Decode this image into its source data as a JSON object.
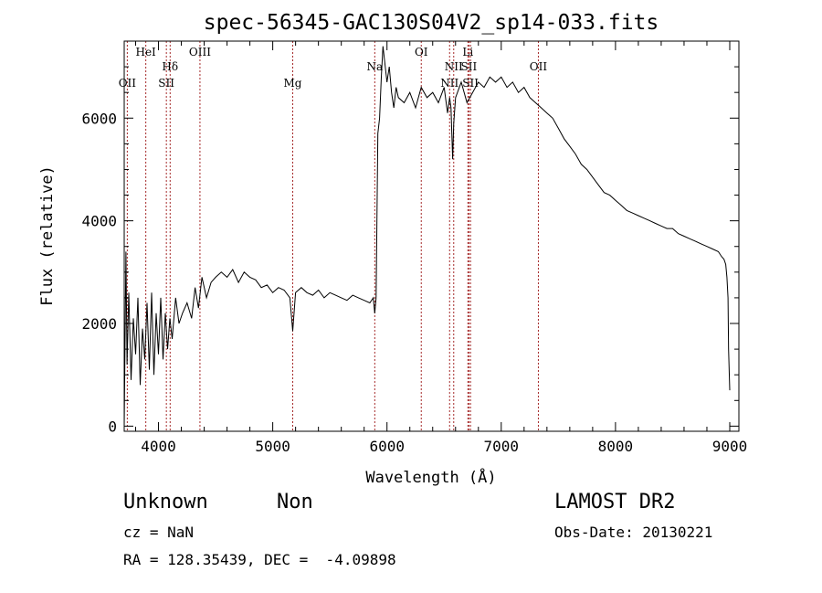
{
  "chart_data": {
    "type": "line",
    "title": "spec-56345-GAC130S04V2_sp14-033.fits",
    "xlabel": "Wavelength (Å)",
    "ylabel": "Flux (relative)",
    "xlim": [
      3700,
      9080
    ],
    "ylim": [
      -100,
      7500
    ],
    "x_ticks": [
      4000,
      5000,
      6000,
      7000,
      8000,
      9000
    ],
    "y_ticks": [
      0,
      2000,
      4000,
      6000
    ],
    "grid": false,
    "line_color": "#000000",
    "marker_color": "#a52a2a",
    "spectral_lines": [
      {
        "label": "OII",
        "wavelength": 3727,
        "row": 3
      },
      {
        "label": "HeI",
        "wavelength": 3889,
        "row": 1
      },
      {
        "label": "SII",
        "wavelength": 4069,
        "row": 3
      },
      {
        "label": "Hδ",
        "wavelength": 4102,
        "row": 2
      },
      {
        "label": "OIII",
        "wavelength": 4363,
        "row": 1
      },
      {
        "label": "Mg",
        "wavelength": 5175,
        "row": 3
      },
      {
        "label": "Na",
        "wavelength": 5893,
        "row": 2
      },
      {
        "label": "OI",
        "wavelength": 6300,
        "row": 1
      },
      {
        "label": "NII",
        "wavelength": 6548,
        "row": 3
      },
      {
        "label": "NII",
        "wavelength": 6584,
        "row": 2
      },
      {
        "label": "Li",
        "wavelength": 6708,
        "row": 1
      },
      {
        "label": "SII",
        "wavelength": 6717,
        "row": 2
      },
      {
        "label": "SII",
        "wavelength": 6731,
        "row": 3
      },
      {
        "label": "OII",
        "wavelength": 7325,
        "row": 2
      }
    ],
    "series": [
      {
        "x": [
          3700,
          3715,
          3725,
          3740,
          3760,
          3780,
          3800,
          3820,
          3840,
          3860,
          3880,
          3900,
          3920,
          3940,
          3960,
          3980,
          4000,
          4020,
          4040,
          4060,
          4080,
          4100,
          4120,
          4150,
          4180,
          4210,
          4250,
          4290,
          4320,
          4350,
          4380,
          4420,
          4460,
          4500,
          4550,
          4600,
          4650,
          4700,
          4750,
          4800,
          4850,
          4900,
          4950,
          5000,
          5050,
          5100,
          5150,
          5175,
          5200,
          5250,
          5300,
          5350,
          5400,
          5450,
          5500,
          5550,
          5600,
          5650,
          5700,
          5750,
          5800,
          5850,
          5880,
          5893,
          5905,
          5920,
          5935,
          5950,
          5965,
          5980,
          6000,
          6020,
          6040,
          6060,
          6080,
          6100,
          6150,
          6200,
          6250,
          6300,
          6350,
          6400,
          6450,
          6500,
          6530,
          6548,
          6560,
          6575,
          6584,
          6600,
          6650,
          6700,
          6750,
          6800,
          6850,
          6900,
          6950,
          7000,
          7050,
          7100,
          7150,
          7200,
          7250,
          7300,
          7350,
          7400,
          7450,
          7500,
          7550,
          7600,
          7650,
          7700,
          7750,
          7800,
          7850,
          7900,
          7950,
          8000,
          8050,
          8100,
          8150,
          8200,
          8250,
          8300,
          8350,
          8400,
          8450,
          8500,
          8550,
          8600,
          8650,
          8700,
          8750,
          8800,
          8850,
          8900,
          8930,
          8950,
          8965,
          8975,
          8985,
          8990,
          9000
        ],
        "y": [
          0,
          3400,
          1200,
          2600,
          900,
          2100,
          1400,
          2500,
          800,
          1900,
          1300,
          2400,
          1100,
          2600,
          1000,
          2200,
          1400,
          2500,
          1300,
          2200,
          1500,
          2100,
          1700,
          2500,
          2000,
          2200,
          2400,
          2100,
          2700,
          2300,
          2900,
          2500,
          2800,
          2900,
          3000,
          2900,
          3050,
          2800,
          3000,
          2900,
          2850,
          2700,
          2750,
          2600,
          2700,
          2650,
          2500,
          1850,
          2600,
          2700,
          2600,
          2550,
          2650,
          2500,
          2600,
          2550,
          2500,
          2450,
          2550,
          2500,
          2450,
          2400,
          2500,
          2200,
          2500,
          5700,
          6000,
          6800,
          7400,
          7100,
          6700,
          7000,
          6500,
          6200,
          6600,
          6400,
          6300,
          6500,
          6200,
          6600,
          6400,
          6500,
          6300,
          6600,
          6100,
          6400,
          6200,
          5200,
          5900,
          6400,
          6700,
          6300,
          6500,
          6700,
          6600,
          6800,
          6700,
          6800,
          6600,
          6700,
          6500,
          6600,
          6400,
          6300,
          6200,
          6100,
          6000,
          5800,
          5600,
          5450,
          5300,
          5100,
          5000,
          4850,
          4700,
          4550,
          4500,
          4400,
          4300,
          4200,
          4150,
          4100,
          4050,
          4000,
          3950,
          3900,
          3850,
          3850,
          3750,
          3700,
          3650,
          3600,
          3550,
          3500,
          3450,
          3400,
          3300,
          3250,
          3150,
          2900,
          2500,
          1500,
          700
        ]
      }
    ]
  },
  "info": {
    "object_class": "Unknown",
    "object_subclass": "Non",
    "cz": "cz = NaN",
    "coords": "RA = 128.35439, DEC =  -4.09898",
    "survey": "LAMOST DR2",
    "obs_date": "Obs-Date: 20130221"
  }
}
